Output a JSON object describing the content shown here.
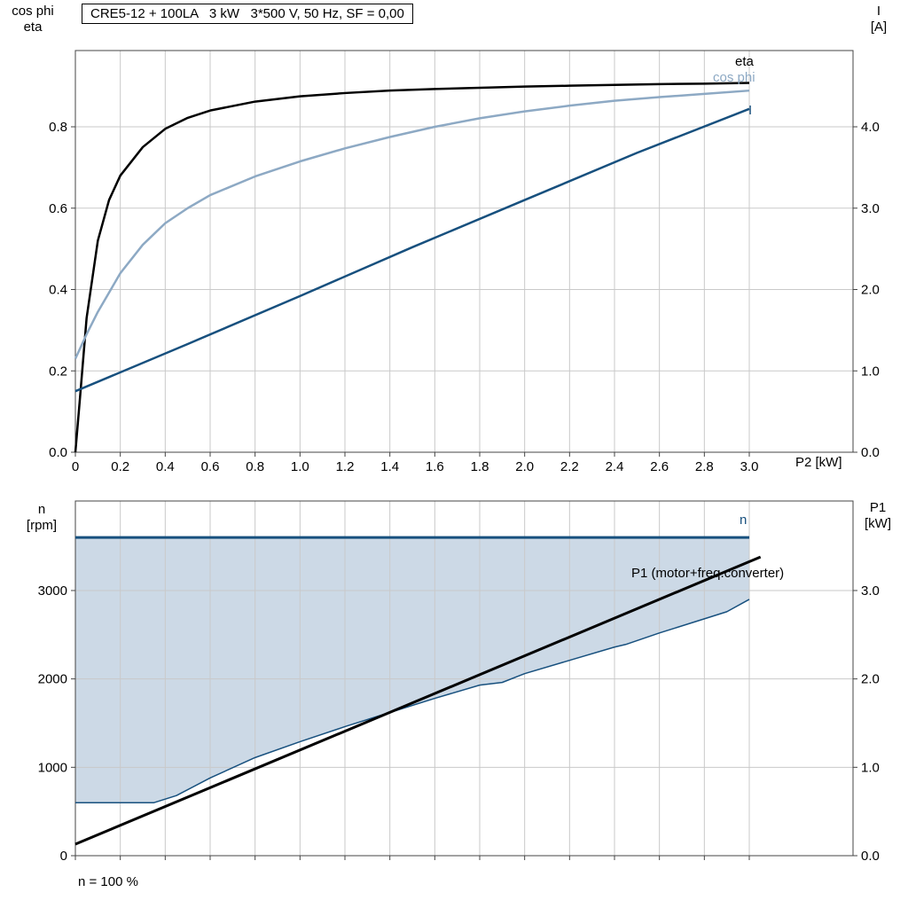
{
  "labels": {
    "title": "CRE5-12 + 100LA   3 kW   3*500 V, 50 Hz, SF = 0,00",
    "top_left_line1": "cos phi",
    "top_left_line2": "eta",
    "top_right_line1": "I",
    "top_right_line2": "[A]",
    "x_axis_label": "P2 [kW]",
    "bottom_left_line1": "n",
    "bottom_left_line2": "[rpm]",
    "bottom_right_line1": "P1",
    "bottom_right_line2": "[kW]",
    "curve_eta": "eta",
    "curve_cos_phi": "cos phi",
    "curve_current": "I",
    "curve_speed": "n",
    "curve_p1": "P1 (motor+freq.converter)",
    "annotation": "n = 100 %"
  },
  "colors": {
    "eta": "#000000",
    "cos_phi": "#8da9c4",
    "current": "#17507e",
    "speed": "#17507e",
    "p1": "#000000",
    "speed_range_fill": "#ccd9e6",
    "gridline": "#c9c9c9",
    "frame": "#444444"
  },
  "chart_data": [
    {
      "type": "line",
      "title": "CRE5-12 + 100LA   3 kW   3*500 V, 50 Hz, SF = 0,00",
      "xlabel": "P2 [kW]",
      "x_axis": {
        "label": "P2 [kW]",
        "tick_values": [
          0,
          0.2,
          0.4,
          0.6,
          0.8,
          1.0,
          1.2,
          1.4,
          1.6,
          1.8,
          2.0,
          2.2,
          2.4,
          2.6,
          2.8,
          3.0
        ],
        "tick_labels": [
          "0",
          "0.2",
          "0.4",
          "0.6",
          "0.8",
          "1.0",
          "1.2",
          "1.4",
          "1.6",
          "1.8",
          "2.0",
          "2.2",
          "2.4",
          "2.6",
          "2.8",
          "3.0"
        ],
        "show_labels": true,
        "range": [
          0,
          3.46
        ]
      },
      "left_axis": {
        "label": "cos phi / eta",
        "tick_values": [
          0,
          0.2,
          0.4,
          0.6,
          0.8
        ],
        "tick_labels": [
          "0.0",
          "0.2",
          "0.4",
          "0.6",
          "0.8"
        ],
        "range": [
          0,
          0.9875
        ]
      },
      "right_axis": {
        "label": "I [A]",
        "tick_values": [
          0,
          1,
          2,
          3,
          4
        ],
        "tick_labels": [
          "0.0",
          "1.0",
          "2.0",
          "3.0",
          "4.0"
        ],
        "range": [
          0,
          4.9375
        ]
      },
      "series": [
        {
          "name": "eta",
          "axis": "left",
          "color": "#000000",
          "width": 2.5,
          "points": [
            [
              0,
              0
            ],
            [
              0.02,
              0.13
            ],
            [
              0.05,
              0.33
            ],
            [
              0.1,
              0.52
            ],
            [
              0.15,
              0.62
            ],
            [
              0.2,
              0.68
            ],
            [
              0.3,
              0.75
            ],
            [
              0.4,
              0.795
            ],
            [
              0.5,
              0.822
            ],
            [
              0.6,
              0.84
            ],
            [
              0.8,
              0.862
            ],
            [
              1.0,
              0.875
            ],
            [
              1.2,
              0.883
            ],
            [
              1.4,
              0.889
            ],
            [
              1.6,
              0.893
            ],
            [
              1.8,
              0.896
            ],
            [
              2.0,
              0.899
            ],
            [
              2.2,
              0.901
            ],
            [
              2.4,
              0.903
            ],
            [
              2.6,
              0.905
            ],
            [
              2.8,
              0.906
            ],
            [
              3.0,
              0.908
            ]
          ]
        },
        {
          "name": "cos phi",
          "axis": "left",
          "color": "#8da9c4",
          "width": 2.5,
          "points": [
            [
              0,
              0.23
            ],
            [
              0.05,
              0.29
            ],
            [
              0.1,
              0.345
            ],
            [
              0.2,
              0.44
            ],
            [
              0.3,
              0.51
            ],
            [
              0.4,
              0.563
            ],
            [
              0.5,
              0.6
            ],
            [
              0.6,
              0.632
            ],
            [
              0.8,
              0.678
            ],
            [
              1.0,
              0.715
            ],
            [
              1.2,
              0.747
            ],
            [
              1.4,
              0.775
            ],
            [
              1.6,
              0.8
            ],
            [
              1.8,
              0.821
            ],
            [
              2.0,
              0.838
            ],
            [
              2.2,
              0.852
            ],
            [
              2.4,
              0.864
            ],
            [
              2.6,
              0.873
            ],
            [
              2.8,
              0.881
            ],
            [
              3.0,
              0.889
            ]
          ]
        },
        {
          "name": "I",
          "axis": "right",
          "color": "#17507e",
          "width": 2.5,
          "points": [
            [
              0,
              0.75
            ],
            [
              0.5,
              1.33
            ],
            [
              1.0,
              1.92
            ],
            [
              1.5,
              2.52
            ],
            [
              2.0,
              3.1
            ],
            [
              2.5,
              3.68
            ],
            [
              3.0,
              4.22
            ]
          ]
        }
      ]
    },
    {
      "type": "line",
      "title": "",
      "xlabel": "",
      "x_axis": {
        "label": "",
        "tick_values": [
          0,
          0.2,
          0.4,
          0.6,
          0.8,
          1.0,
          1.2,
          1.4,
          1.6,
          1.8,
          2.0,
          2.2,
          2.4,
          2.6,
          2.8,
          3.0
        ],
        "tick_labels": [],
        "show_labels": false,
        "range": [
          0,
          3.46
        ]
      },
      "left_axis": {
        "label": "n [rpm]",
        "tick_values": [
          0,
          1000,
          2000,
          3000
        ],
        "tick_labels": [
          "0",
          "1000",
          "2000",
          "3000"
        ],
        "range": [
          0,
          4013
        ]
      },
      "right_axis": {
        "label": "P1 [kW]",
        "tick_values": [
          0,
          1,
          2,
          3
        ],
        "tick_labels": [
          "0.0",
          "1.0",
          "2.0",
          "3.0"
        ],
        "range": [
          0,
          4.013
        ]
      },
      "series": [
        {
          "name": "n",
          "axis": "left",
          "color": "#17507e",
          "width": 3,
          "points": [
            [
              0,
              3600
            ],
            [
              3.0,
              3600
            ]
          ]
        },
        {
          "name": "n-min",
          "axis": "left",
          "color": "#17507e",
          "width": 1.5,
          "points": [
            [
              0,
              600
            ],
            [
              0.35,
              600
            ],
            [
              0.45,
              680
            ],
            [
              0.6,
              880
            ],
            [
              0.8,
              1110
            ],
            [
              1.0,
              1290
            ],
            [
              1.2,
              1460
            ],
            [
              1.4,
              1620
            ],
            [
              1.6,
              1780
            ],
            [
              1.8,
              1930
            ],
            [
              1.9,
              1960
            ],
            [
              2.0,
              2060
            ],
            [
              2.2,
              2210
            ],
            [
              2.4,
              2360
            ],
            [
              2.45,
              2390
            ],
            [
              2.6,
              2520
            ],
            [
              2.8,
              2680
            ],
            [
              2.9,
              2760
            ],
            [
              3.0,
              2900
            ]
          ]
        },
        {
          "name": "P1 (motor+freq.converter)",
          "axis": "right",
          "color": "#000000",
          "width": 3,
          "points": [
            [
              0,
              0.13
            ],
            [
              3.05,
              3.38
            ]
          ]
        }
      ],
      "fill_between": {
        "upper": 0,
        "lower": 1,
        "color": "#ccd9e6"
      },
      "annotation": "n = 100 %"
    }
  ]
}
